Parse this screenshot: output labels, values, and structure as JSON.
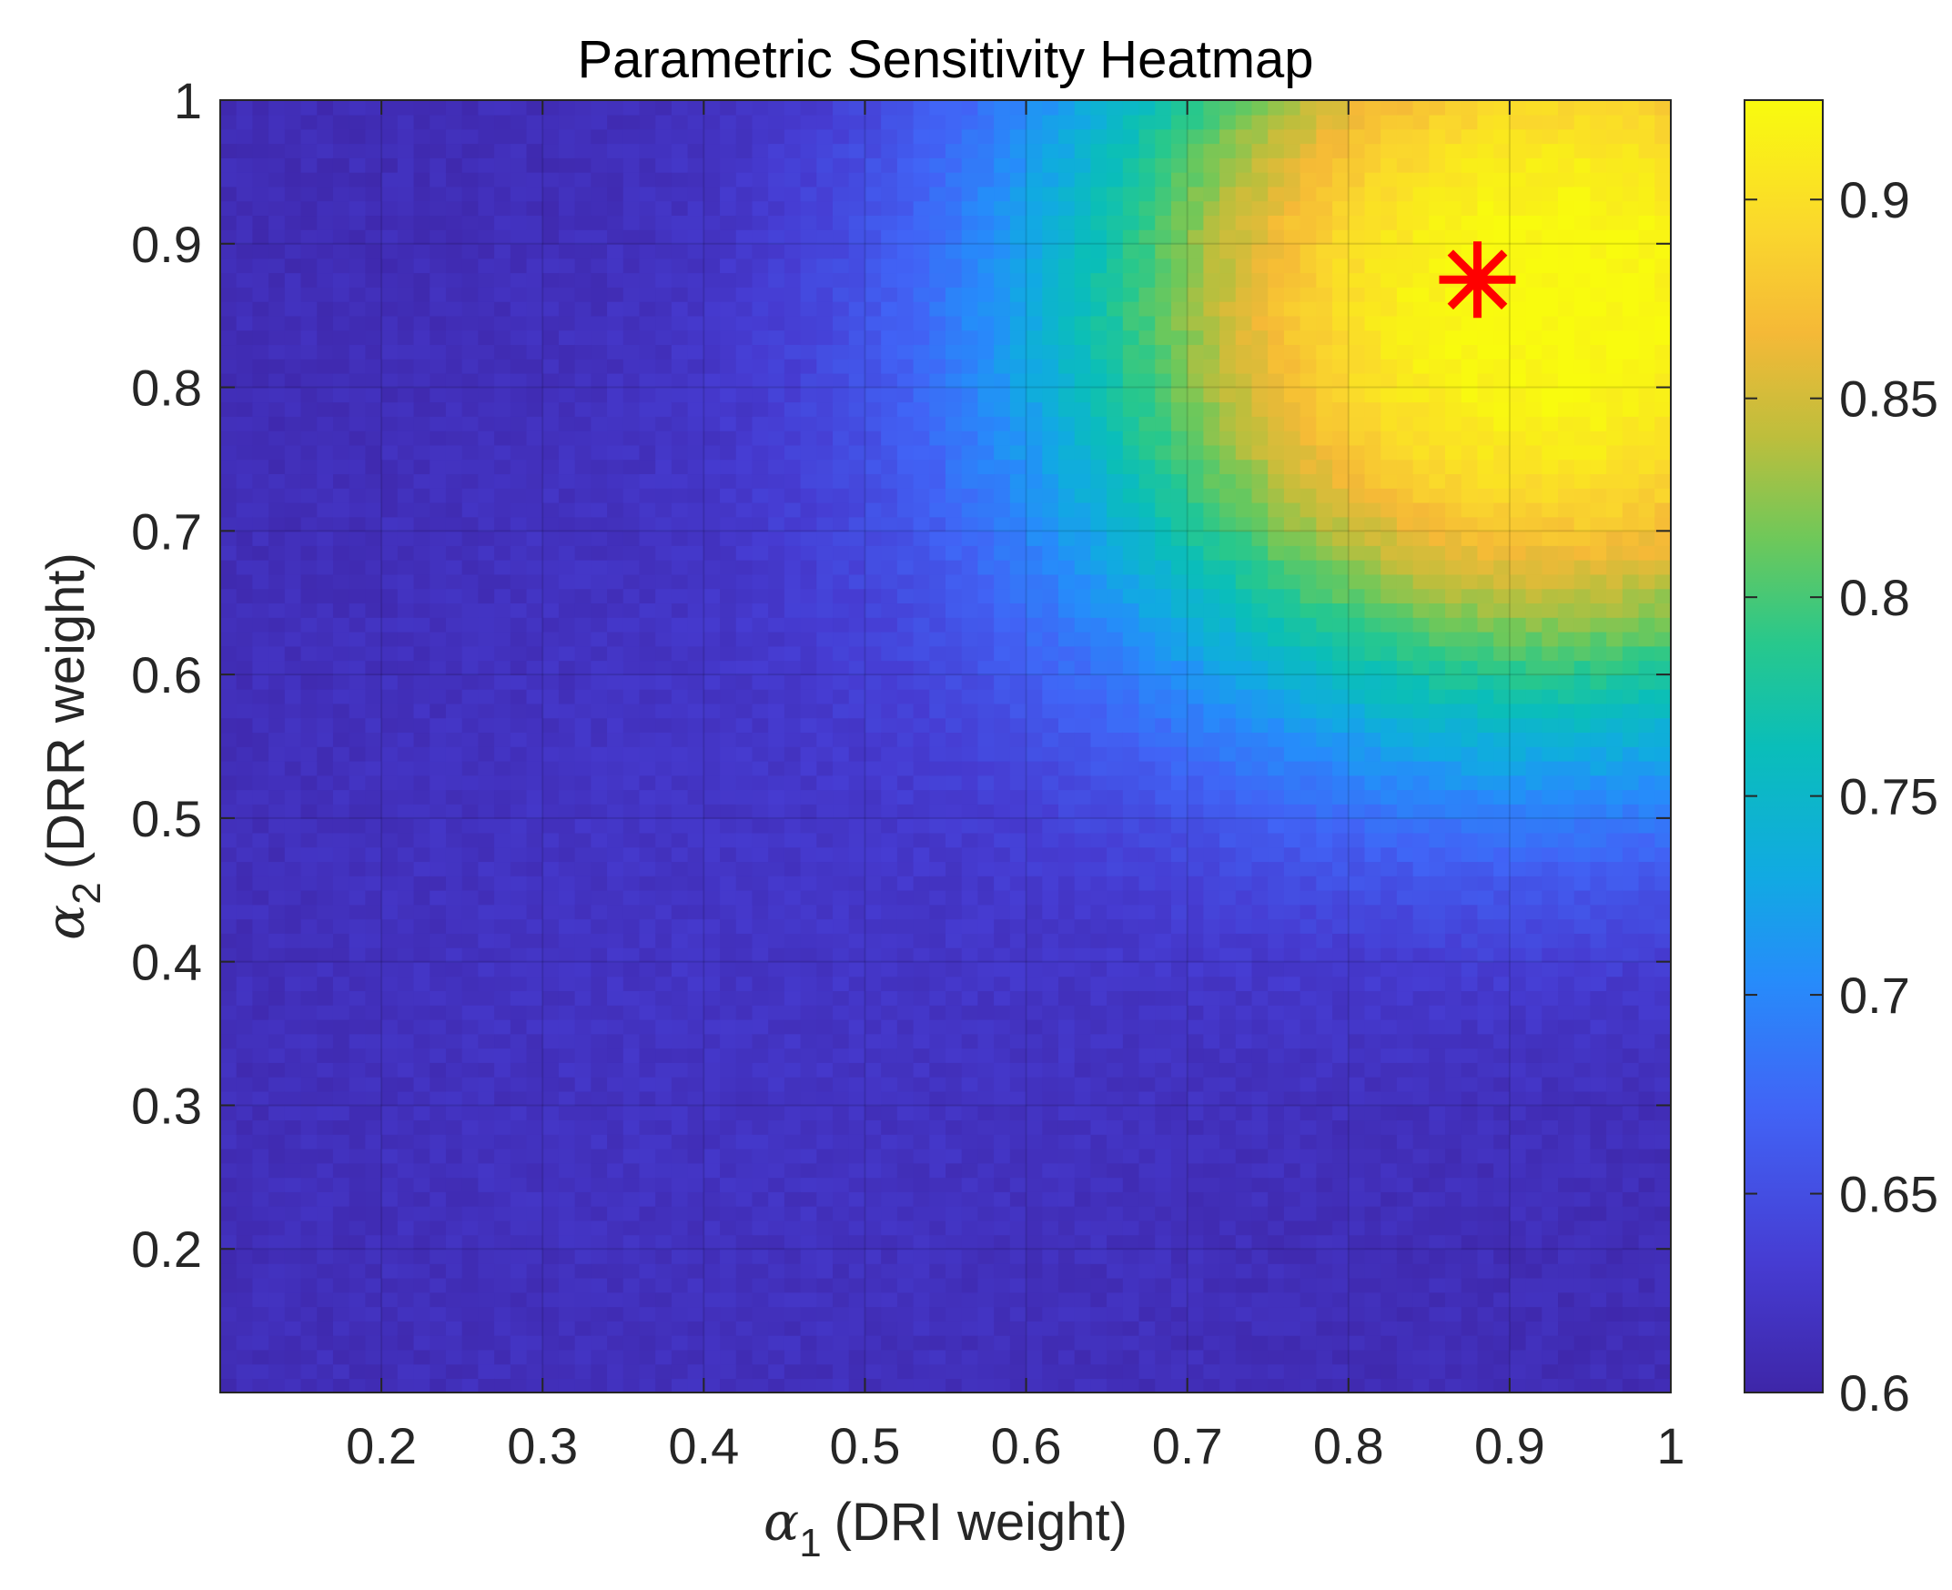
{
  "chart_data": {
    "type": "heatmap",
    "title": "Parametric Sensitivity Heatmap",
    "xlabel": {
      "symbol": "α",
      "subscript": "1",
      "text": "(DRI weight)"
    },
    "ylabel": {
      "symbol": "α",
      "subscript": "2",
      "text": "(DRR weight)"
    },
    "xlim": [
      0.1,
      1.0
    ],
    "ylim": [
      0.1,
      1.0
    ],
    "x_ticks": [
      0.2,
      0.3,
      0.4,
      0.5,
      0.6,
      0.7,
      0.8,
      0.9,
      1.0
    ],
    "x_tick_labels": [
      "0.2",
      "0.3",
      "0.4",
      "0.5",
      "0.6",
      "0.7",
      "0.8",
      "0.9",
      "1"
    ],
    "y_ticks": [
      0.2,
      0.3,
      0.4,
      0.5,
      0.6,
      0.7,
      0.8,
      0.9,
      1.0
    ],
    "y_tick_labels": [
      "0.2",
      "0.3",
      "0.4",
      "0.5",
      "0.6",
      "0.7",
      "0.8",
      "0.9",
      "1"
    ],
    "grid": true,
    "colormap": "parula",
    "colorbar": {
      "limits": [
        0.6,
        0.925
      ],
      "ticks": [
        0.6,
        0.65,
        0.7,
        0.75,
        0.8,
        0.85,
        0.9
      ],
      "tick_labels": [
        "0.6",
        "0.65",
        "0.7",
        "0.75",
        "0.8",
        "0.85",
        "0.9"
      ],
      "placement": "right"
    },
    "peak_value": 0.925,
    "baseline_value": 0.61,
    "optimum_marker": {
      "x": 0.88,
      "y": 0.875,
      "symbol": "*",
      "color": "#ff0000"
    }
  }
}
